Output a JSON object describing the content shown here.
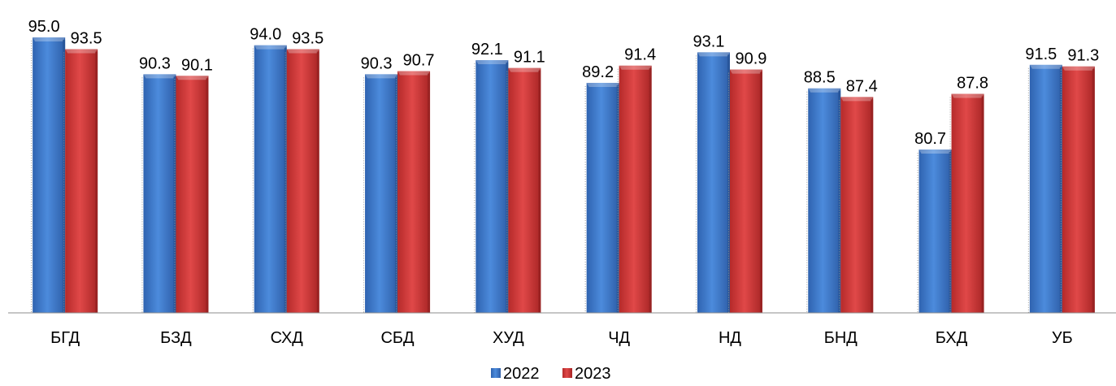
{
  "chart_data": {
    "type": "bar",
    "categories": [
      "БГД",
      "БЗД",
      "СХД",
      "СБД",
      "ХУД",
      "ЧД",
      "НД",
      "БНД",
      "БХД",
      "УБ"
    ],
    "series": [
      {
        "name": "2022",
        "values": [
          95.0,
          90.3,
          94.0,
          90.3,
          92.1,
          89.2,
          93.1,
          88.5,
          80.7,
          91.5
        ],
        "color": "#3E7ACB"
      },
      {
        "name": "2023",
        "values": [
          93.5,
          90.1,
          93.5,
          90.7,
          91.1,
          91.4,
          90.9,
          87.4,
          87.8,
          91.3
        ],
        "color": "#D23C3C"
      }
    ],
    "value_labels": true,
    "value_format": "one_decimal",
    "y_axis_visible": false,
    "grid": false,
    "legend": "bottom-center"
  }
}
